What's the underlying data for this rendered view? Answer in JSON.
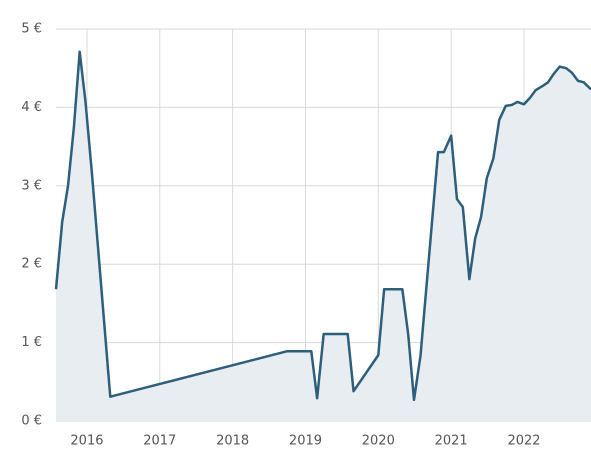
{
  "chart_data": {
    "type": "line",
    "x": [
      2015.575,
      2015.66,
      2015.74,
      2015.82,
      2015.9,
      2015.98,
      2016.07,
      2016.32,
      2018.75,
      2019.08,
      2019.16,
      2019.25,
      2019.58,
      2019.66,
      2020.0,
      2020.08,
      2020.33,
      2020.41,
      2020.49,
      2020.58,
      2020.82,
      2020.9,
      2021.0,
      2021.08,
      2021.16,
      2021.25,
      2021.33,
      2021.41,
      2021.49,
      2021.58,
      2021.66,
      2021.75,
      2021.83,
      2021.91,
      2022.0,
      2022.08,
      2022.16,
      2022.25,
      2022.33,
      2022.41,
      2022.49,
      2022.58,
      2022.66,
      2022.74,
      2022.82,
      2022.92
    ],
    "values": [
      1.68,
      2.54,
      3.0,
      3.74,
      4.71,
      4.07,
      3.14,
      0.31,
      0.89,
      0.89,
      0.29,
      1.11,
      1.11,
      0.38,
      0.84,
      1.68,
      1.68,
      1.11,
      0.27,
      0.84,
      3.43,
      3.43,
      3.64,
      2.83,
      2.73,
      1.81,
      2.33,
      2.6,
      3.1,
      3.35,
      3.84,
      4.02,
      4.03,
      4.07,
      4.04,
      4.12,
      4.22,
      4.27,
      4.32,
      4.43,
      4.52,
      4.5,
      4.44,
      4.34,
      4.32,
      4.23
    ],
    "color": "#2d5f7c",
    "fill": "#e8edf2",
    "xlim": [
      2015.575,
      2022.92
    ],
    "xticks": [
      2016,
      2017,
      2018,
      2019,
      2020,
      2021,
      2022
    ],
    "ylim": [
      0,
      5
    ],
    "yticks": [
      {
        "value": 0,
        "label": "0 €"
      },
      {
        "value": 1,
        "label": "1 €"
      },
      {
        "value": 2,
        "label": "2 €"
      },
      {
        "value": 3,
        "label": "3 €"
      },
      {
        "value": 4,
        "label": "4 €"
      },
      {
        "value": 5,
        "label": "5 €"
      }
    ],
    "grid": true
  }
}
